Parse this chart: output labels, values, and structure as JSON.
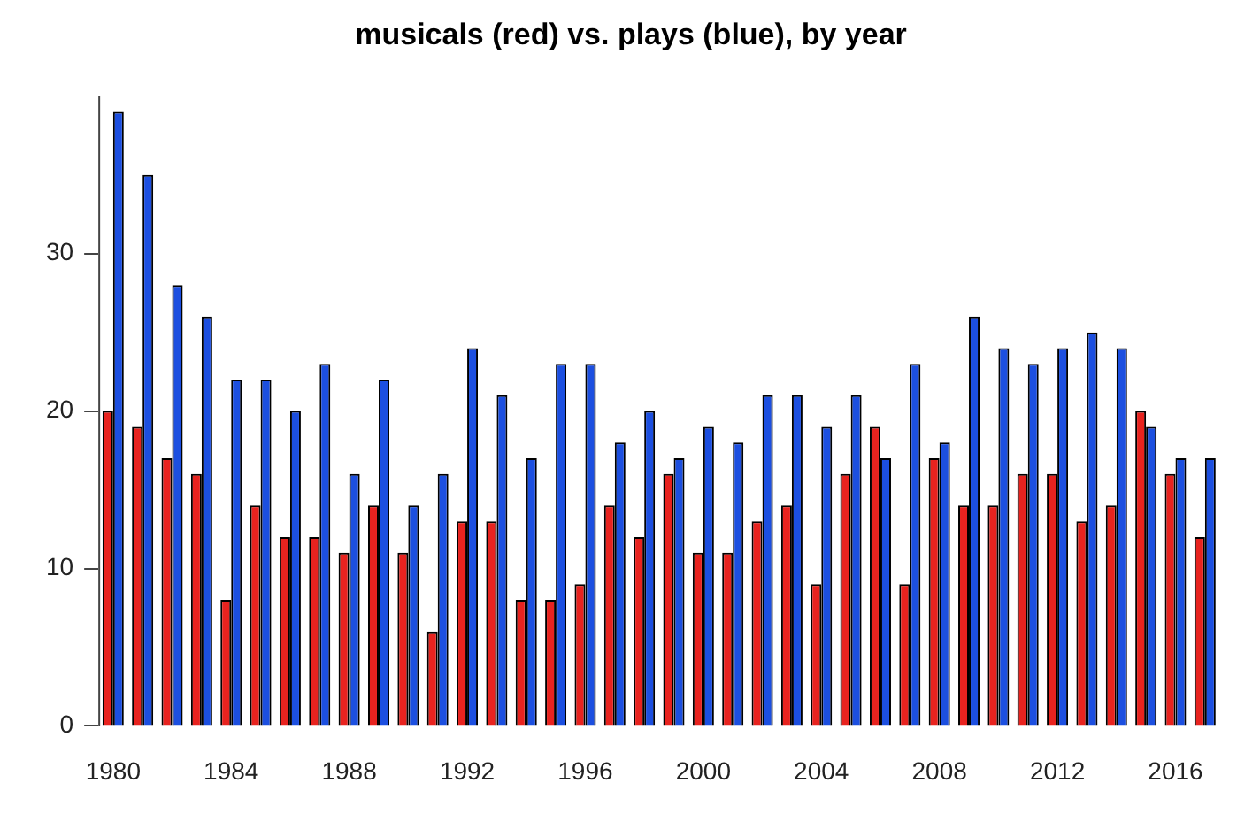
{
  "chart_data": {
    "type": "bar",
    "title": "musicals (red) vs. plays (blue), by year",
    "categories": [
      "1980",
      null,
      null,
      null,
      "1984",
      null,
      null,
      null,
      "1988",
      null,
      null,
      null,
      "1992",
      null,
      null,
      null,
      "1996",
      null,
      null,
      null,
      "2000",
      null,
      null,
      null,
      "2004",
      null,
      null,
      null,
      "2008",
      null,
      null,
      null,
      "2012",
      null,
      null,
      null,
      "2016",
      null
    ],
    "series": [
      {
        "color": "#e8231f",
        "values": [
          20,
          19,
          17,
          16,
          8,
          14,
          12,
          12,
          11,
          14,
          11,
          6,
          13,
          13,
          8,
          8,
          9,
          14,
          12,
          16,
          11,
          11,
          13,
          14,
          9,
          16,
          19,
          9,
          17,
          14,
          14,
          16,
          16,
          13,
          14,
          20,
          16,
          12
        ]
      },
      {
        "color": "#1c4fe0",
        "values": [
          39,
          35,
          28,
          26,
          22,
          22,
          20,
          23,
          16,
          22,
          14,
          16,
          24,
          21,
          17,
          23,
          23,
          18,
          20,
          17,
          19,
          18,
          21,
          21,
          19,
          21,
          17,
          23,
          18,
          26,
          24,
          23,
          24,
          25,
          24,
          19,
          17,
          17
        ]
      }
    ],
    "ylim": [
      0,
      40
    ],
    "yticks": [
      0,
      10,
      20,
      30
    ],
    "grid": false,
    "legend": false
  }
}
